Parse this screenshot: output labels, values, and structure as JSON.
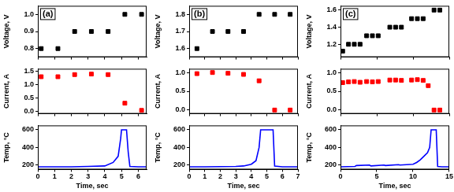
{
  "chart_data": [
    {
      "type": "scatter",
      "annotation": "(a)",
      "y_label": "Voltage, V",
      "color": "#000000",
      "marker": "square",
      "grid": false,
      "tick_labels": "y",
      "x": [
        0.2,
        1.2,
        2.2,
        3.2,
        4.2,
        5.2,
        6.2
      ],
      "values": [
        0.8,
        0.8,
        0.9,
        0.9,
        0.9,
        1.0,
        1.0
      ],
      "xlim": [
        0,
        6.5
      ],
      "xticks": [
        0,
        1,
        2,
        3,
        4,
        5,
        6
      ],
      "ylim": [
        0.75,
        1.05
      ],
      "yticks": [
        0.8,
        0.9,
        {
          "value": 1.0,
          "label": "1.0"
        }
      ]
    },
    {
      "type": "scatter",
      "y_label": "Current, A",
      "color": "#ff0000",
      "marker": "square",
      "grid": false,
      "tick_labels": "y",
      "x": [
        0.2,
        1.2,
        2.2,
        3.2,
        4.2,
        5.2,
        6.2
      ],
      "values": [
        1.3,
        1.3,
        1.38,
        1.4,
        1.38,
        0.3,
        0.03
      ],
      "xlim": [
        0,
        6.5
      ],
      "xticks": [
        0,
        1,
        2,
        3,
        4,
        5,
        6
      ],
      "ylim": [
        -0.1,
        1.6
      ],
      "yticks": [
        {
          "value": 0,
          "label": "0.0"
        },
        0.5,
        {
          "value": 1,
          "label": "1.0"
        },
        1.5
      ]
    },
    {
      "type": "line",
      "y_label": "Temp, °C",
      "x_label": "Time, sec",
      "color": "#0000ff",
      "grid": false,
      "x": [
        0,
        1,
        2,
        3,
        4,
        4.5,
        4.8,
        4.95,
        5.0,
        5.3,
        5.4,
        5.5,
        6,
        6.5
      ],
      "values": [
        180,
        180,
        180,
        185,
        190,
        230,
        300,
        500,
        600,
        600,
        350,
        185,
        180,
        180
      ],
      "xlim": [
        0,
        6.5
      ],
      "xticks": [
        0,
        1,
        2,
        3,
        4,
        5,
        6
      ],
      "ylim": [
        150,
        650
      ],
      "yticks": [
        200,
        400,
        600
      ]
    },
    {
      "type": "scatter",
      "annotation": "(b)",
      "y_label": "Voltage, V",
      "color": "#000000",
      "marker": "square",
      "grid": false,
      "tick_labels": "y",
      "x": [
        0.5,
        1.5,
        2.5,
        3.5,
        4.5,
        5.5,
        6.5
      ],
      "values": [
        1.6,
        1.7,
        1.7,
        1.7,
        1.8,
        1.8,
        1.8
      ],
      "xlim": [
        0,
        7
      ],
      "xticks": [
        0,
        1,
        2,
        3,
        4,
        5,
        6,
        7
      ],
      "ylim": [
        1.55,
        1.85
      ],
      "yticks": [
        1.6,
        1.7,
        1.8
      ]
    },
    {
      "type": "scatter",
      "y_label": "Current, A",
      "color": "#ff0000",
      "marker": "square",
      "grid": false,
      "tick_labels": "y",
      "x": [
        0.5,
        1.5,
        2.5,
        3.5,
        4.5,
        5.5,
        6.5
      ],
      "values": [
        0.97,
        1.0,
        0.98,
        0.95,
        0.78,
        0.0,
        0.0
      ],
      "xlim": [
        0,
        7
      ],
      "xticks": [
        0,
        1,
        2,
        3,
        4,
        5,
        6,
        7
      ],
      "ylim": [
        -0.1,
        1.1
      ],
      "yticks": [
        {
          "value": 0,
          "label": "0.0"
        },
        0.5,
        {
          "value": 1,
          "label": "1.0"
        }
      ]
    },
    {
      "type": "line",
      "y_label": "Temp, °C",
      "x_label": "Time, sec",
      "color": "#0000ff",
      "grid": false,
      "x": [
        0,
        1,
        2,
        3,
        3.5,
        4,
        4.3,
        4.5,
        4.6,
        5.4,
        5.5,
        6,
        7
      ],
      "values": [
        180,
        180,
        182,
        185,
        190,
        210,
        250,
        400,
        600,
        600,
        190,
        180,
        180
      ],
      "xlim": [
        0,
        7
      ],
      "xticks": [
        0,
        1,
        2,
        3,
        4,
        5,
        6,
        7
      ],
      "ylim": [
        150,
        650
      ],
      "yticks": [
        200,
        400,
        600
      ]
    },
    {
      "type": "scatter",
      "annotation": "(c)",
      "y_label": "Voltage, V",
      "color": "#000000",
      "marker": "square",
      "grid": false,
      "tick_labels": "y",
      "x": [
        0.3,
        1.1,
        1.9,
        2.7,
        3.6,
        4.4,
        5.2,
        6.8,
        7.6,
        8.4,
        9.8,
        10.6,
        11.4,
        12.9,
        13.7
      ],
      "values": [
        1.12,
        1.2,
        1.2,
        1.2,
        1.3,
        1.3,
        1.3,
        1.4,
        1.4,
        1.4,
        1.5,
        1.5,
        1.5,
        1.6,
        1.6
      ],
      "xlim": [
        0,
        15
      ],
      "xticks": [
        0,
        5,
        10,
        15
      ],
      "ylim": [
        1.05,
        1.65
      ],
      "yticks": [
        1.2,
        1.4,
        1.6
      ]
    },
    {
      "type": "scatter",
      "y_label": "Current, A",
      "color": "#ff0000",
      "marker": "square",
      "grid": false,
      "tick_labels": "y",
      "x": [
        0.3,
        1.1,
        1.9,
        2.7,
        3.6,
        4.4,
        5.2,
        6.8,
        7.6,
        8.4,
        9.8,
        10.6,
        11.4,
        12.1,
        12.9,
        13.7
      ],
      "values": [
        0.73,
        0.75,
        0.76,
        0.74,
        0.76,
        0.75,
        0.76,
        0.8,
        0.8,
        0.79,
        0.8,
        0.81,
        0.79,
        0.65,
        0,
        0
      ],
      "xlim": [
        0,
        15
      ],
      "xticks": [
        0,
        5,
        10,
        15
      ],
      "ylim": [
        -0.1,
        1.1
      ],
      "yticks": [
        {
          "value": 0,
          "label": "0.0"
        },
        0.5,
        {
          "value": 1,
          "label": "1.0"
        }
      ]
    },
    {
      "type": "line",
      "y_label": "Temp, °C",
      "x_label": "Time, sec",
      "color": "#0000ff",
      "grid": false,
      "x": [
        0,
        2,
        2.2,
        4,
        4.2,
        6,
        6.2,
        8,
        8.2,
        10,
        10.5,
        11,
        11.5,
        12,
        12.3,
        12.5,
        13.2,
        13.4,
        14,
        15
      ],
      "values": [
        180,
        185,
        195,
        200,
        190,
        200,
        195,
        205,
        200,
        210,
        230,
        260,
        300,
        340,
        400,
        600,
        600,
        185,
        180,
        180
      ],
      "xlim": [
        0,
        15
      ],
      "xticks": [
        0,
        5,
        10,
        15
      ],
      "ylim": [
        150,
        650
      ],
      "yticks": [
        200,
        400,
        600
      ]
    }
  ]
}
